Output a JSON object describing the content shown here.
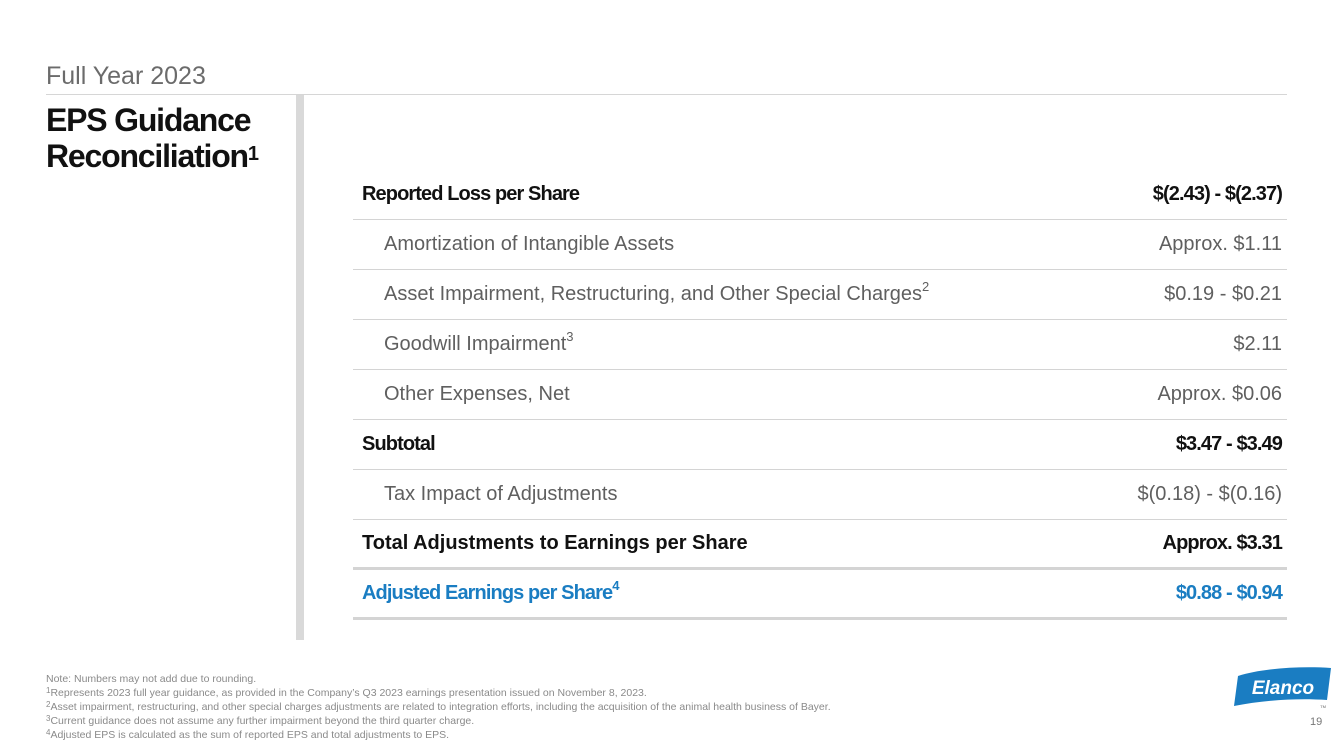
{
  "header": {
    "subtitle": "Full Year 2023",
    "title_line1": "EPS Guidance",
    "title_line2": "Reconciliation",
    "title_footnote": "1"
  },
  "table": {
    "rows": [
      {
        "label": "Reported Loss per Share",
        "footnote": "",
        "value": "$(2.43) - $(2.37)"
      },
      {
        "label": "Amortization of Intangible Assets",
        "footnote": "",
        "value": "Approx. $1.11"
      },
      {
        "label": "Asset Impairment, Restructuring, and Other Special Charges",
        "footnote": "2",
        "value": "$0.19 - $0.21"
      },
      {
        "label": "Goodwill Impairment",
        "footnote": "3",
        "value": "$2.11"
      },
      {
        "label": "Other Expenses, Net",
        "footnote": "",
        "value": "Approx. $0.06"
      },
      {
        "label": "Subtotal",
        "footnote": "",
        "value": "$3.47 - $3.49"
      },
      {
        "label": "Tax Impact of Adjustments",
        "footnote": "",
        "value": "$(0.18) - $(0.16)"
      },
      {
        "label": "Total Adjustments to Earnings per Share",
        "footnote": "",
        "value": "Approx. $3.31"
      },
      {
        "label": "Adjusted Earnings per Share",
        "footnote": "4",
        "value": "$0.88 - $0.94"
      }
    ]
  },
  "notes": {
    "note": "Note: Numbers may not add due to rounding.",
    "items": [
      {
        "mark": "1",
        "text": "Represents 2023 full year guidance, as provided in the Company’s Q3 2023 earnings presentation issued on November 8, 2023."
      },
      {
        "mark": "2",
        "text": "Asset impairment, restructuring, and other special charges adjustments are related to integration efforts, including the acquisition of the animal health business of Bayer."
      },
      {
        "mark": "3",
        "text": "Current guidance does not assume any further impairment beyond the third quarter charge."
      },
      {
        "mark": "4",
        "text": "Adjusted EPS is calculated as the sum of reported EPS and total adjustments to EPS."
      }
    ]
  },
  "logo": {
    "text": "Elanco",
    "tm": "TM",
    "color": "#1a7dc2"
  },
  "page_number": "19",
  "colors": {
    "accent": "#1a7dc2",
    "rule": "#d4d4d4",
    "bar": "#d9d9d9"
  }
}
